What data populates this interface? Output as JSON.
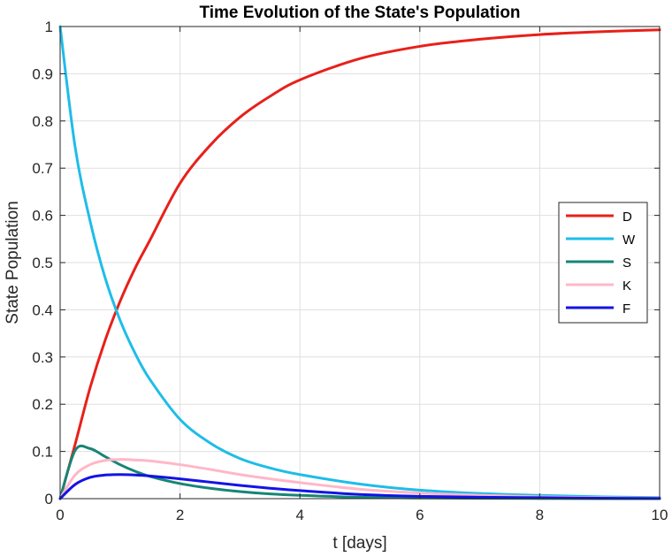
{
  "chart_data": {
    "type": "line",
    "title": "Time Evolution of the State's Population",
    "xlabel": "t [days]",
    "ylabel": "State Population",
    "xlim": [
      0,
      10
    ],
    "ylim": [
      0,
      1
    ],
    "x_ticks": [
      0,
      2,
      4,
      6,
      8,
      10
    ],
    "y_ticks": [
      0,
      0.1,
      0.2,
      0.3,
      0.4,
      0.5,
      0.6,
      0.7,
      0.8,
      0.9,
      1
    ],
    "grid": true,
    "legend_position": "right",
    "x": [
      0,
      0.25,
      0.5,
      0.75,
      1,
      1.25,
      1.5,
      2,
      2.5,
      3,
      3.5,
      4,
      5,
      6,
      7,
      8,
      9,
      10
    ],
    "series": [
      {
        "name": "D",
        "color": "#e8201a",
        "values": [
          0,
          0.115,
          0.235,
          0.335,
          0.418,
          0.488,
          0.548,
          0.668,
          0.748,
          0.808,
          0.852,
          0.887,
          0.932,
          0.958,
          0.973,
          0.983,
          0.989,
          0.993
        ]
      },
      {
        "name": "W",
        "color": "#1ebde8",
        "values": [
          1,
          0.745,
          0.588,
          0.468,
          0.378,
          0.308,
          0.252,
          0.168,
          0.118,
          0.085,
          0.065,
          0.051,
          0.031,
          0.018,
          0.011,
          0.007,
          0.004,
          0.002
        ]
      },
      {
        "name": "S",
        "color": "#178576",
        "values": [
          0,
          0.102,
          0.106,
          0.089,
          0.072,
          0.058,
          0.047,
          0.032,
          0.022,
          0.015,
          0.01,
          0.007,
          0.003,
          0.0015,
          0.0007,
          0.0003,
          0.0001,
          0
        ]
      },
      {
        "name": "K",
        "color": "#ffb7c8",
        "values": [
          0,
          0.05,
          0.072,
          0.081,
          0.083,
          0.082,
          0.08,
          0.072,
          0.062,
          0.051,
          0.042,
          0.034,
          0.02,
          0.012,
          0.007,
          0.004,
          0.002,
          0.001
        ]
      },
      {
        "name": "F",
        "color": "#1313e6",
        "values": [
          0,
          0.03,
          0.045,
          0.05,
          0.051,
          0.05,
          0.048,
          0.042,
          0.035,
          0.028,
          0.022,
          0.017,
          0.009,
          0.005,
          0.003,
          0.002,
          0.001,
          0.0005
        ]
      }
    ]
  }
}
